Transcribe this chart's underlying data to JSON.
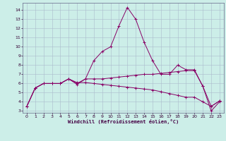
{
  "xlabel": "Windchill (Refroidissement éolien,°C)",
  "bg_color": "#cceee8",
  "grid_color": "#aabbcc",
  "line_color": "#880066",
  "x_ticks": [
    0,
    1,
    2,
    3,
    4,
    5,
    6,
    7,
    8,
    9,
    10,
    11,
    12,
    13,
    14,
    15,
    16,
    17,
    18,
    19,
    20,
    21,
    22,
    23
  ],
  "y_ticks": [
    3,
    4,
    5,
    6,
    7,
    8,
    9,
    10,
    11,
    12,
    13,
    14
  ],
  "ylim": [
    2.8,
    14.8
  ],
  "xlim": [
    -0.5,
    23.5
  ],
  "series": [
    {
      "x": [
        0,
        1,
        2,
        3,
        4,
        5,
        6,
        7,
        8,
        9,
        10,
        11,
        12,
        13,
        14,
        15,
        16,
        17,
        18,
        19,
        20,
        21,
        22,
        23
      ],
      "y": [
        3.5,
        5.5,
        6.0,
        6.0,
        6.0,
        6.5,
        5.9,
        6.5,
        8.5,
        9.5,
        10.0,
        12.3,
        14.3,
        13.0,
        10.5,
        8.5,
        7.0,
        7.0,
        8.0,
        7.5,
        7.5,
        5.7,
        3.0,
        4.0
      ]
    },
    {
      "x": [
        0,
        1,
        2,
        3,
        4,
        5,
        6,
        7,
        8,
        9,
        10,
        11,
        12,
        13,
        14,
        15,
        16,
        17,
        18,
        19,
        20,
        21,
        22,
        23
      ],
      "y": [
        3.5,
        5.5,
        6.0,
        6.0,
        6.0,
        6.5,
        6.0,
        6.5,
        6.5,
        6.5,
        6.6,
        6.7,
        6.8,
        6.9,
        7.0,
        7.0,
        7.1,
        7.2,
        7.3,
        7.4,
        7.4,
        5.7,
        3.5,
        4.1
      ]
    },
    {
      "x": [
        0,
        1,
        2,
        3,
        4,
        5,
        6,
        7,
        8,
        9,
        10,
        11,
        12,
        13,
        14,
        15,
        16,
        17,
        18,
        19,
        20,
        21,
        22,
        23
      ],
      "y": [
        3.5,
        5.5,
        6.0,
        6.0,
        6.0,
        6.5,
        6.1,
        6.1,
        6.0,
        5.9,
        5.8,
        5.7,
        5.6,
        5.5,
        5.4,
        5.3,
        5.1,
        4.9,
        4.7,
        4.5,
        4.5,
        4.0,
        3.5,
        4.1
      ]
    }
  ]
}
